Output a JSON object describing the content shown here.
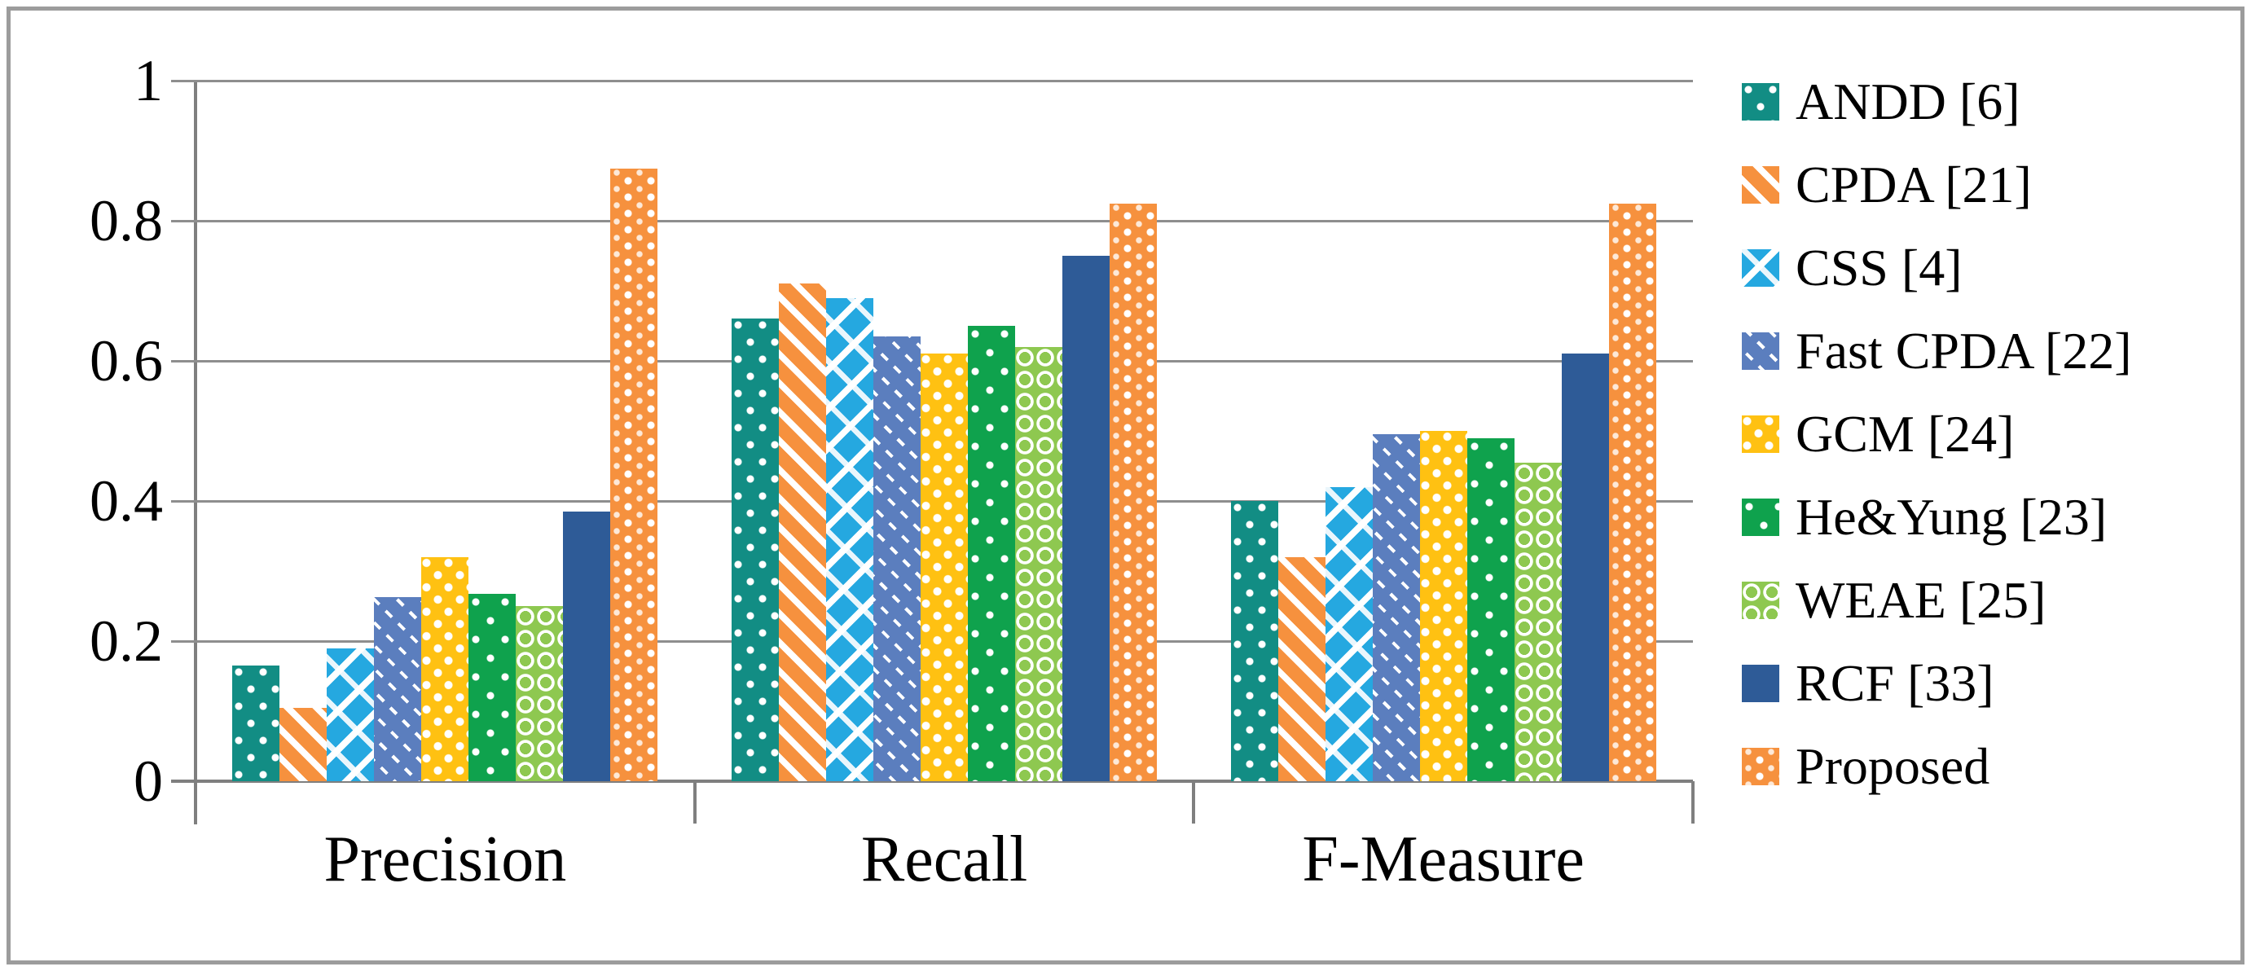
{
  "figure": {
    "background": "#FFFFFF",
    "border_color": "#9C9C9C",
    "gridline_color": "#8E8E8E",
    "axis_color": "#7F7F7F",
    "text_color": "#000000"
  },
  "chart_data": {
    "type": "bar",
    "title": "",
    "xlabel": "",
    "ylabel": "",
    "categories": [
      "Precision",
      "Recall",
      "F-Measure"
    ],
    "series": [
      {
        "name": "ANDD [6]",
        "color": "#128D84",
        "pattern": "dots-sparse",
        "values": [
          0.165,
          0.66,
          0.4
        ]
      },
      {
        "name": "CPDA [21]",
        "color": "#F6913E",
        "pattern": "diagonal-stripes",
        "values": [
          0.105,
          0.71,
          0.32
        ]
      },
      {
        "name": "CSS [4]",
        "color": "#25A8E0",
        "pattern": "diagonal-weave",
        "values": [
          0.19,
          0.69,
          0.42
        ]
      },
      {
        "name": "Fast CPDA [22]",
        "color": "#5B7EBE",
        "pattern": "diagonal-dashes",
        "values": [
          0.263,
          0.635,
          0.495
        ]
      },
      {
        "name": "GCM [24]",
        "color": "#FFC112",
        "pattern": "dot-grid",
        "values": [
          0.32,
          0.61,
          0.5
        ]
      },
      {
        "name": "He&Yung [23]",
        "color": "#0FA24D",
        "pattern": "chevron-dots",
        "values": [
          0.268,
          0.65,
          0.49
        ]
      },
      {
        "name": "WEAE [25]",
        "color": "#8EC850",
        "pattern": "waves",
        "values": [
          0.25,
          0.62,
          0.455
        ]
      },
      {
        "name": "RCF [33]",
        "color": "#2E5B97",
        "pattern": "solid",
        "values": [
          0.385,
          0.75,
          0.61
        ]
      },
      {
        "name": "Proposed",
        "color": "#F6913E",
        "pattern": "dotted-columns",
        "values": [
          0.875,
          0.825,
          0.825
        ]
      }
    ],
    "ylim": [
      0,
      1
    ],
    "ytick_labels": [
      "1",
      "0.8",
      "0.6",
      "0.4",
      "0.2",
      "0"
    ],
    "grid": true,
    "legend_position": "right"
  }
}
